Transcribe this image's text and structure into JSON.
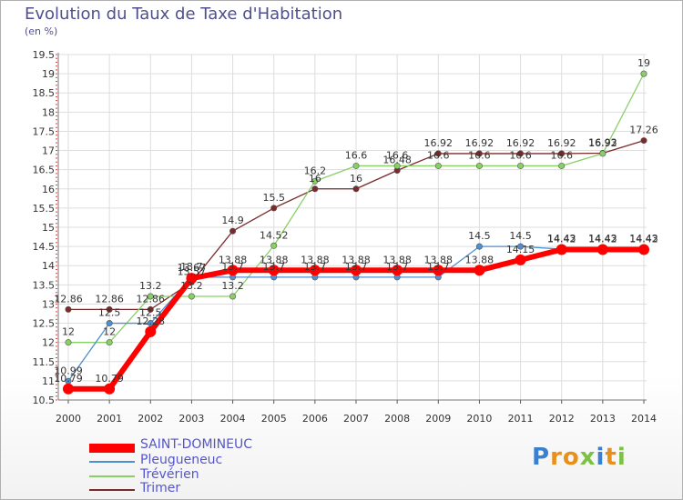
{
  "header": {
    "title": "Evolution du Taux de Taxe d'Habitation",
    "unit": "(en %)"
  },
  "logo": {
    "text": "Proxiti",
    "letters": [
      {
        "ch": "P",
        "color": "#3a7fd0"
      },
      {
        "ch": "r",
        "color": "#e8901a"
      },
      {
        "ch": "o",
        "color": "#e8901a"
      },
      {
        "ch": "x",
        "color": "#7cc242"
      },
      {
        "ch": "i",
        "color": "#3a7fd0"
      },
      {
        "ch": "t",
        "color": "#e8901a"
      },
      {
        "ch": "i",
        "color": "#7cc242"
      }
    ]
  },
  "chart_data": {
    "type": "line",
    "title": "Evolution du Taux de Taxe d'Habitation",
    "ylabel": "(en %)",
    "xlabel": "",
    "ylim": [
      10.5,
      19.5
    ],
    "yticks": [
      10.5,
      11,
      11.5,
      12,
      12.5,
      13,
      13.5,
      14,
      14.5,
      15,
      15.5,
      16,
      16.5,
      17,
      17.5,
      18,
      18.5,
      19,
      19.5
    ],
    "x": [
      2000,
      2001,
      2002,
      2003,
      2004,
      2005,
      2006,
      2007,
      2008,
      2009,
      2010,
      2011,
      2012,
      2013,
      2014
    ],
    "grid": true,
    "legend_position": "bottom-left",
    "series": [
      {
        "name": "Trimer",
        "color": "#7a2a2a",
        "width": 1.3,
        "values": [
          12.86,
          12.86,
          12.86,
          13.57,
          14.9,
          15.5,
          16.0,
          16.0,
          16.48,
          16.92,
          16.92,
          16.92,
          16.92,
          16.93,
          17.26
        ],
        "labels": [
          "12.86",
          "12.86",
          "12.86",
          "13.57",
          "14.9",
          "15.5",
          "16",
          "16",
          "16.48",
          "16.92",
          "16.92",
          "16.92",
          "16.92",
          "16.93",
          "17.26"
        ]
      },
      {
        "name": "Trévérien",
        "color": "#88d066",
        "width": 1.3,
        "values": [
          12.0,
          12.0,
          13.2,
          13.2,
          13.2,
          14.52,
          16.2,
          16.6,
          16.6,
          16.6,
          16.6,
          16.6,
          16.6,
          16.92,
          19.0
        ],
        "labels": [
          "12",
          "12",
          "13.2",
          "13.2",
          "13.2",
          "14.52",
          "16.2",
          "16.6",
          "16.6",
          "16.6",
          "16.6",
          "16.6",
          "16.6",
          "16.92",
          "19"
        ]
      },
      {
        "name": "Pleugueneuc",
        "color": "#4d8fd0",
        "width": 1.3,
        "values": [
          10.99,
          12.5,
          12.5,
          13.7,
          13.7,
          13.7,
          13.7,
          13.7,
          13.7,
          13.7,
          14.5,
          14.5,
          14.43,
          14.43,
          14.43
        ],
        "labels": [
          "10.99",
          "12.5",
          "12.5",
          "13.7",
          "13.7",
          "13.7",
          "13.7",
          "13.7",
          "13.7",
          "13.7",
          "14.5",
          "14.5",
          "14.43",
          "14.43",
          "14.43"
        ]
      },
      {
        "name": "SAINT-DOMINEUC",
        "color": "#ff0000",
        "width": 6,
        "values": [
          10.79,
          10.79,
          12.28,
          13.67,
          13.88,
          13.88,
          13.88,
          13.88,
          13.88,
          13.88,
          13.88,
          14.15,
          14.42,
          14.42,
          14.42
        ],
        "labels": [
          "10.79",
          "10.79",
          "12.28",
          "13.67",
          "13.88",
          "13.88",
          "13.88",
          "13.88",
          "13.88",
          "13.88",
          "13.88",
          "14.15",
          "14.42",
          "14.42",
          "14.42"
        ]
      }
    ]
  },
  "legend": [
    {
      "name": "SAINT-DOMINEUC",
      "color": "#ff0000"
    },
    {
      "name": "Pleugueneuc",
      "color": "#4d8fd0"
    },
    {
      "name": "Trévérien",
      "color": "#88d066"
    },
    {
      "name": "Trimer",
      "color": "#7a2a2a"
    }
  ]
}
